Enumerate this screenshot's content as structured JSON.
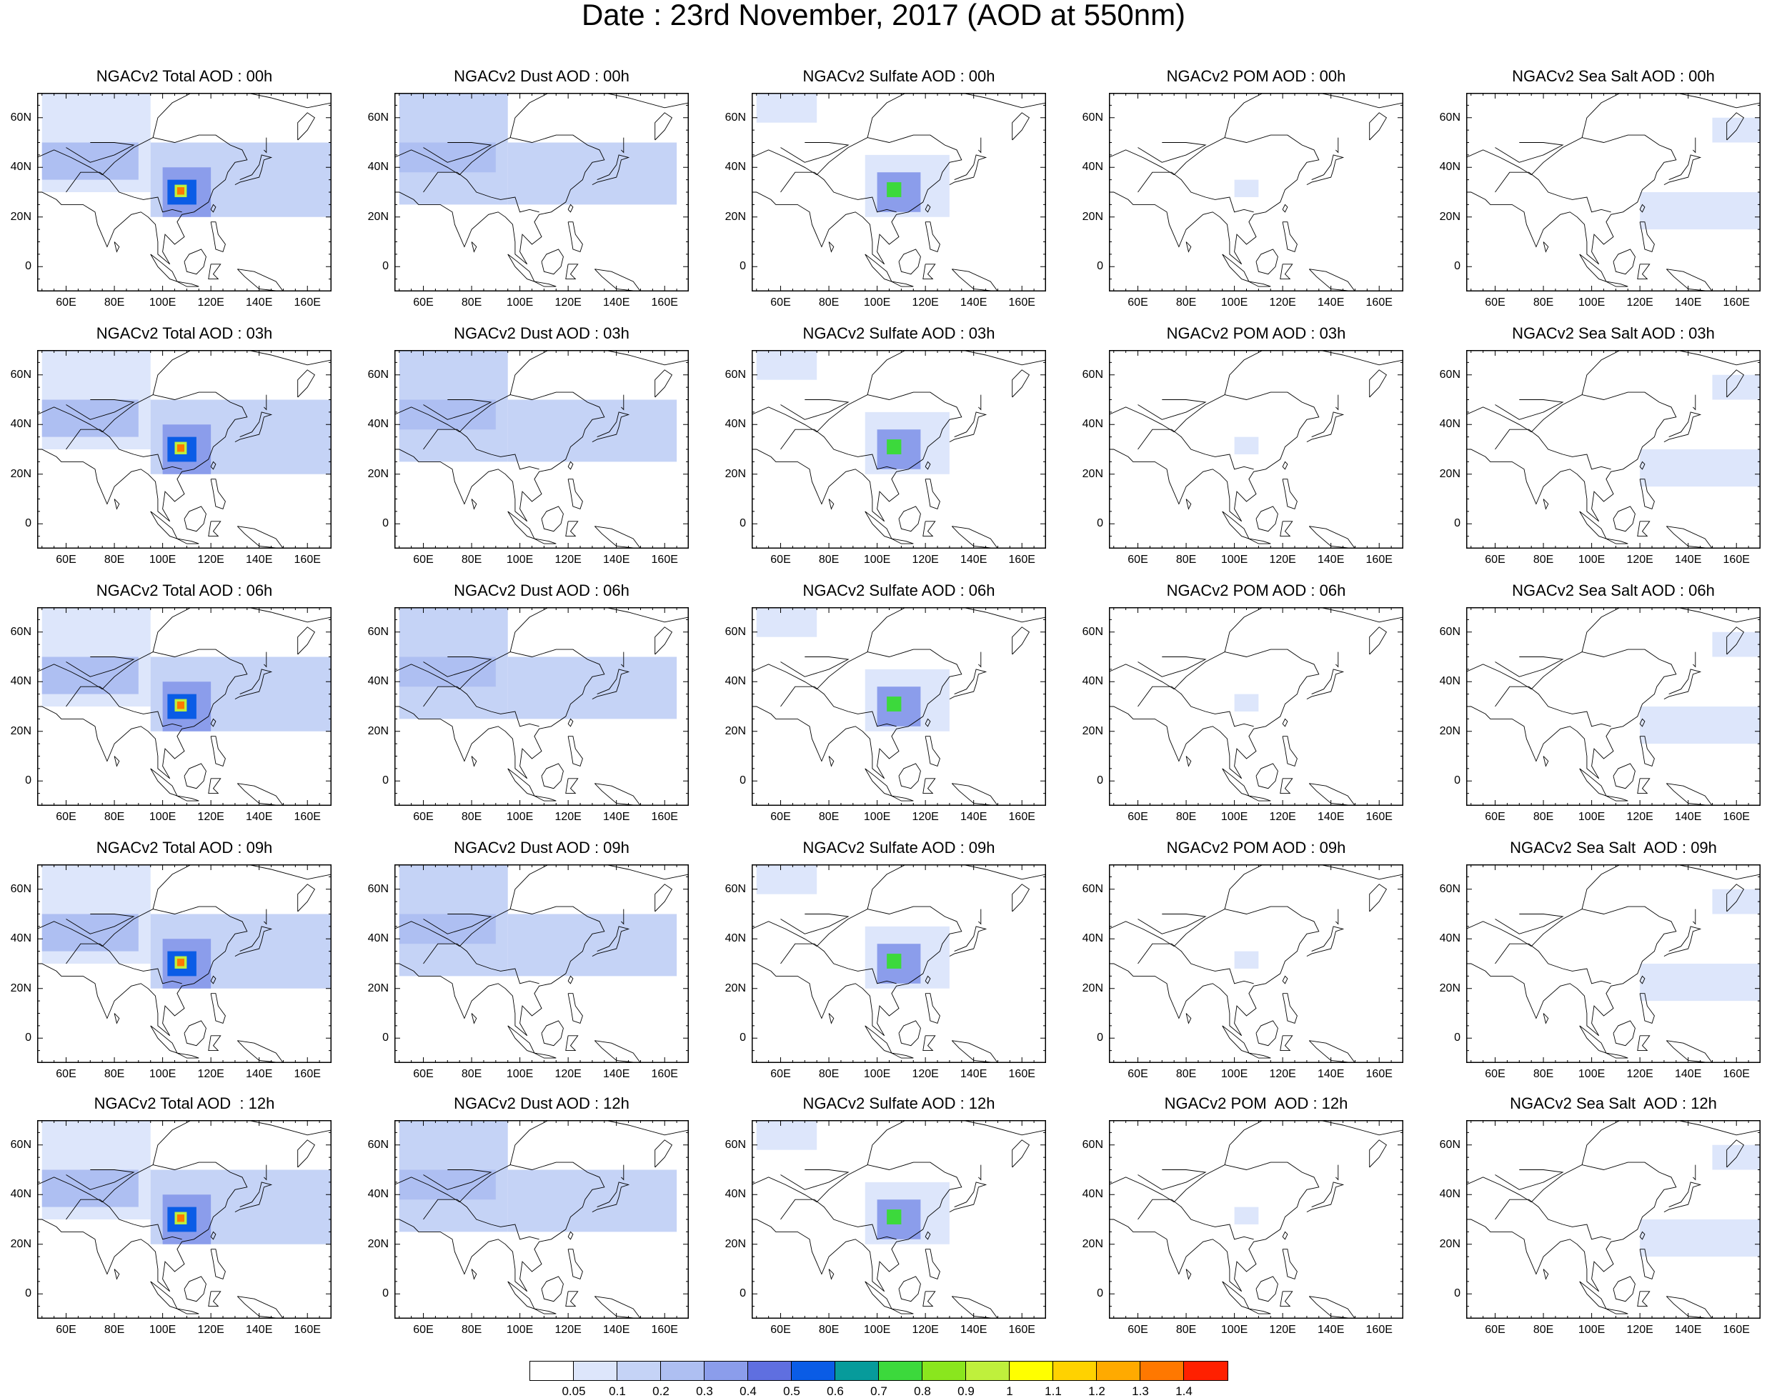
{
  "title": "Date : 23rd November, 2017 (AOD at 550nm)",
  "chart_data": {
    "type": "heatmap",
    "layout": "5x5 grid of maps",
    "xlim": [
      48,
      170
    ],
    "ylim": [
      -10,
      70
    ],
    "lon_tick_labels": [
      "60E",
      "80E",
      "100E",
      "120E",
      "140E",
      "160E"
    ],
    "lon_tick_values": [
      60,
      80,
      100,
      120,
      140,
      160
    ],
    "lat_tick_labels": [
      "60N",
      "40N",
      "20N",
      "0"
    ],
    "lat_tick_values": [
      60,
      40,
      20,
      0
    ],
    "rows": [
      {
        "hour": "00h",
        "titles": [
          "NGACv2 Total AOD : 00h",
          "NGACv2 Dust AOD : 00h",
          "NGACv2 Sulfate AOD : 00h",
          "NGACv2 POM AOD : 00h",
          "NGACv2 Sea Salt AOD : 00h"
        ]
      },
      {
        "hour": "03h",
        "titles": [
          "NGACv2 Total AOD : 03h",
          "NGACv2 Dust AOD : 03h",
          "NGACv2 Sulfate AOD : 03h",
          "NGACv2 POM AOD : 03h",
          "NGACv2 Sea Salt AOD : 03h"
        ]
      },
      {
        "hour": "06h",
        "titles": [
          "NGACv2 Total AOD : 06h",
          "NGACv2 Dust AOD : 06h",
          "NGACv2 Sulfate AOD : 06h",
          "NGACv2 POM AOD : 06h",
          "NGACv2 Sea Salt AOD : 06h"
        ]
      },
      {
        "hour": "09h",
        "titles": [
          "NGACv2 Total AOD : 09h",
          "NGACv2 Dust AOD : 09h",
          "NGACv2 Sulfate AOD : 09h",
          "NGACv2 POM AOD : 09h",
          "NGACv2 Sea Salt  AOD : 09h"
        ]
      },
      {
        "hour": "12h",
        "titles": [
          "NGACv2 Total AOD  : 12h",
          "NGACv2 Dust AOD : 12h",
          "NGACv2 Sulfate AOD : 12h",
          "NGACv2 POM  AOD : 12h",
          "NGACv2 Sea Salt  AOD : 12h"
        ]
      }
    ],
    "colorbar": {
      "colors": [
        "#ffffff",
        "#dde6fb",
        "#c5d3f6",
        "#aebff2",
        "#8b9deb",
        "#5f6fe0",
        "#0a5ce6",
        "#079b9b",
        "#3cd93c",
        "#8ae61e",
        "#bff03c",
        "#ffff00",
        "#ffd200",
        "#ffaa00",
        "#ff7800",
        "#ff2000"
      ],
      "tick_labels": [
        "0.05",
        "0.1",
        "0.2",
        "0.3",
        "0.4",
        "0.5",
        "0.6",
        "0.7",
        "0.8",
        "0.9",
        "1",
        "1.1",
        "1.2",
        "1.3",
        "1.4"
      ]
    },
    "fields": {
      "total": [
        {
          "lon": [
            50,
            95
          ],
          "lat": [
            30,
            70
          ],
          "level": 1
        },
        {
          "lon": [
            95,
            170
          ],
          "lat": [
            20,
            50
          ],
          "level": 2
        },
        {
          "lon": [
            50,
            90
          ],
          "lat": [
            35,
            50
          ],
          "level": 3
        },
        {
          "lon": [
            100,
            120
          ],
          "lat": [
            20,
            40
          ],
          "level": 4
        },
        {
          "lon": [
            102,
            114
          ],
          "lat": [
            25,
            35
          ],
          "level": 6
        },
        {
          "lon": [
            105,
            110
          ],
          "lat": [
            28,
            33
          ],
          "level": 10
        },
        {
          "lon": [
            106,
            109
          ],
          "lat": [
            29,
            32
          ],
          "level": 14
        }
      ],
      "dust": [
        {
          "lon": [
            50,
            95
          ],
          "lat": [
            25,
            70
          ],
          "level": 2
        },
        {
          "lon": [
            95,
            165
          ],
          "lat": [
            25,
            50
          ],
          "level": 2
        },
        {
          "lon": [
            50,
            90
          ],
          "lat": [
            38,
            50
          ],
          "level": 3
        }
      ],
      "sulfate": [
        {
          "lon": [
            50,
            75
          ],
          "lat": [
            58,
            70
          ],
          "level": 1
        },
        {
          "lon": [
            95,
            130
          ],
          "lat": [
            20,
            45
          ],
          "level": 1
        },
        {
          "lon": [
            100,
            118
          ],
          "lat": [
            22,
            38
          ],
          "level": 4
        },
        {
          "lon": [
            104,
            110
          ],
          "lat": [
            28,
            34
          ],
          "level": 8
        }
      ],
      "pom": [
        {
          "lon": [
            100,
            110
          ],
          "lat": [
            28,
            35
          ],
          "level": 1
        }
      ],
      "seasalt": [
        {
          "lon": [
            120,
            170
          ],
          "lat": [
            15,
            30
          ],
          "level": 1
        },
        {
          "lon": [
            150,
            170
          ],
          "lat": [
            50,
            60
          ],
          "level": 1
        }
      ]
    },
    "panel_fields": [
      "total",
      "dust",
      "sulfate",
      "pom",
      "seasalt"
    ]
  }
}
